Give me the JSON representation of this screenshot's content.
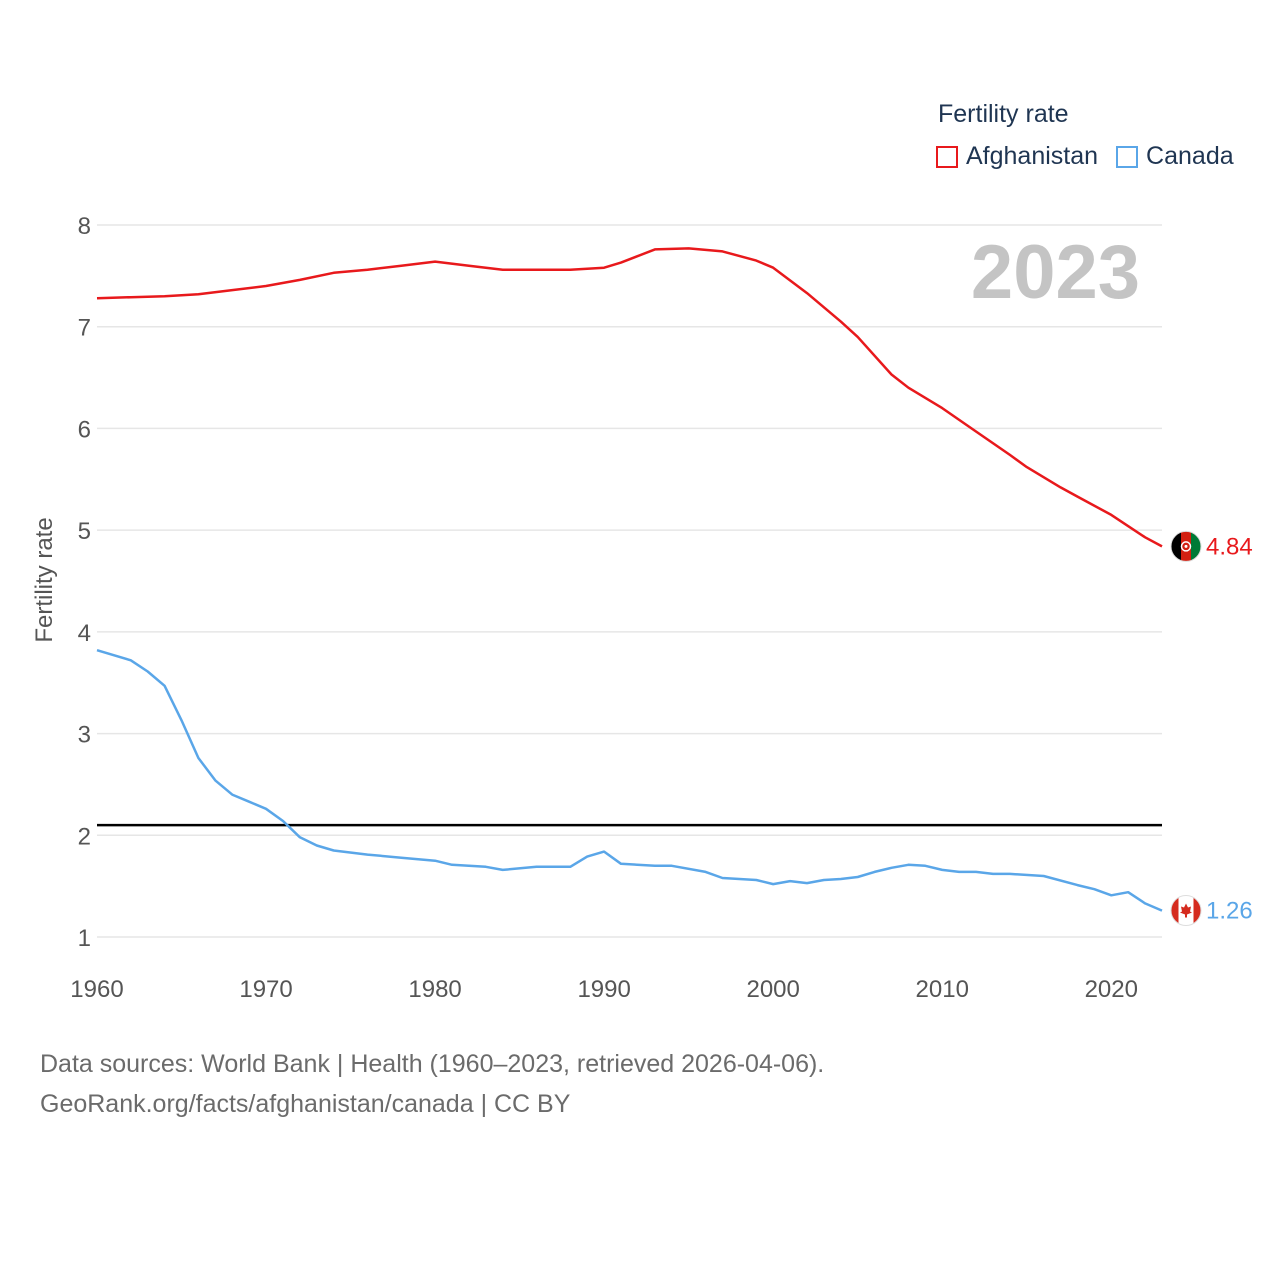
{
  "legend": {
    "title": "Fertility rate",
    "items": [
      {
        "label": "Afghanistan",
        "color": "#e8191c"
      },
      {
        "label": "Canada",
        "color": "#5aa6e8"
      }
    ]
  },
  "year_label": "2023",
  "footer": {
    "line1": "Data sources: World Bank | Health (1960–2023, retrieved 2026-04-06).",
    "line2": "GeoRank.org/facts/afghanistan/canada | CC BY"
  },
  "chart_data": {
    "type": "line",
    "title": "Fertility rate",
    "xlabel": "",
    "ylabel": "Fertility rate",
    "xlim": [
      1960,
      2023
    ],
    "ylim": [
      0.7,
      8.1
    ],
    "x_ticks": [
      1960,
      1970,
      1980,
      1990,
      2000,
      2010,
      2020
    ],
    "y_ticks": [
      1,
      2,
      3,
      4,
      5,
      6,
      7,
      8
    ],
    "grid": true,
    "reference_line": {
      "y": 2.1,
      "color": "#000000"
    },
    "series": [
      {
        "name": "Afghanistan",
        "color": "#e8191c",
        "end_label": "4.84",
        "points": [
          [
            1960,
            7.28
          ],
          [
            1962,
            7.29
          ],
          [
            1964,
            7.3
          ],
          [
            1966,
            7.32
          ],
          [
            1968,
            7.36
          ],
          [
            1970,
            7.4
          ],
          [
            1972,
            7.46
          ],
          [
            1974,
            7.53
          ],
          [
            1976,
            7.56
          ],
          [
            1978,
            7.6
          ],
          [
            1980,
            7.64
          ],
          [
            1982,
            7.6
          ],
          [
            1984,
            7.56
          ],
          [
            1986,
            7.56
          ],
          [
            1988,
            7.56
          ],
          [
            1990,
            7.58
          ],
          [
            1991,
            7.63
          ],
          [
            1993,
            7.76
          ],
          [
            1995,
            7.77
          ],
          [
            1997,
            7.74
          ],
          [
            1999,
            7.65
          ],
          [
            2000,
            7.58
          ],
          [
            2002,
            7.33
          ],
          [
            2004,
            7.05
          ],
          [
            2005,
            6.9
          ],
          [
            2007,
            6.53
          ],
          [
            2008,
            6.4
          ],
          [
            2010,
            6.2
          ],
          [
            2012,
            5.97
          ],
          [
            2014,
            5.74
          ],
          [
            2015,
            5.62
          ],
          [
            2017,
            5.42
          ],
          [
            2018,
            5.33
          ],
          [
            2020,
            5.15
          ],
          [
            2022,
            4.93
          ],
          [
            2023,
            4.84
          ]
        ]
      },
      {
        "name": "Canada",
        "color": "#5aa6e8",
        "end_label": "1.26",
        "points": [
          [
            1960,
            3.82
          ],
          [
            1962,
            3.72
          ],
          [
            1963,
            3.61
          ],
          [
            1964,
            3.47
          ],
          [
            1965,
            3.13
          ],
          [
            1966,
            2.76
          ],
          [
            1967,
            2.54
          ],
          [
            1968,
            2.4
          ],
          [
            1969,
            2.33
          ],
          [
            1970,
            2.26
          ],
          [
            1971,
            2.14
          ],
          [
            1972,
            1.98
          ],
          [
            1973,
            1.9
          ],
          [
            1974,
            1.85
          ],
          [
            1976,
            1.81
          ],
          [
            1978,
            1.78
          ],
          [
            1980,
            1.75
          ],
          [
            1981,
            1.71
          ],
          [
            1983,
            1.69
          ],
          [
            1984,
            1.66
          ],
          [
            1986,
            1.69
          ],
          [
            1988,
            1.69
          ],
          [
            1989,
            1.79
          ],
          [
            1990,
            1.84
          ],
          [
            1991,
            1.72
          ],
          [
            1993,
            1.7
          ],
          [
            1994,
            1.7
          ],
          [
            1996,
            1.64
          ],
          [
            1997,
            1.58
          ],
          [
            1999,
            1.56
          ],
          [
            2000,
            1.52
          ],
          [
            2001,
            1.55
          ],
          [
            2002,
            1.53
          ],
          [
            2003,
            1.56
          ],
          [
            2004,
            1.57
          ],
          [
            2005,
            1.59
          ],
          [
            2006,
            1.64
          ],
          [
            2007,
            1.68
          ],
          [
            2008,
            1.71
          ],
          [
            2009,
            1.7
          ],
          [
            2010,
            1.66
          ],
          [
            2011,
            1.64
          ],
          [
            2012,
            1.64
          ],
          [
            2013,
            1.62
          ],
          [
            2014,
            1.62
          ],
          [
            2016,
            1.6
          ],
          [
            2018,
            1.51
          ],
          [
            2019,
            1.47
          ],
          [
            2020,
            1.41
          ],
          [
            2021,
            1.44
          ],
          [
            2022,
            1.33
          ],
          [
            2023,
            1.26
          ]
        ]
      }
    ]
  }
}
